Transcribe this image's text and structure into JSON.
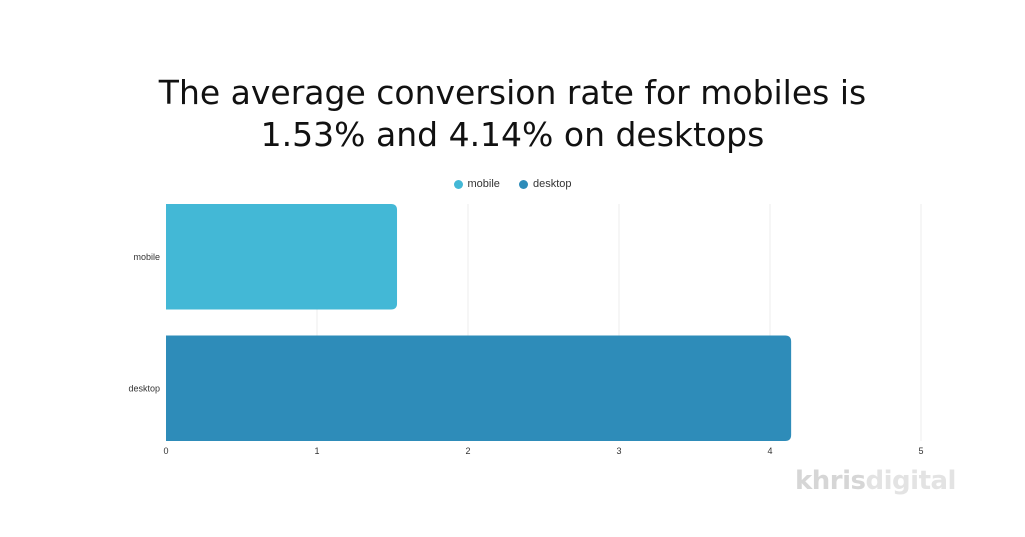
{
  "title_lines": [
    "The average conversion rate for mobiles is",
    "1.53% and 4.14% on desktops"
  ],
  "legend": [
    {
      "label": "mobile",
      "color": "#43b8d6"
    },
    {
      "label": "desktop",
      "color": "#2e8cb9"
    }
  ],
  "chart_data": {
    "type": "bar",
    "orientation": "horizontal",
    "title": "The average conversion rate for mobiles is 1.53% and 4.14% on desktops",
    "categories": [
      "mobile",
      "desktop"
    ],
    "values": [
      1.53,
      4.14
    ],
    "colors": [
      "#43b8d6",
      "#2e8cb9"
    ],
    "xlim": [
      0,
      5
    ],
    "xticks": [
      "0",
      "1",
      "2",
      "3",
      "4",
      "5"
    ],
    "grid": true,
    "legend_position": "top"
  },
  "watermark": {
    "text_main": "khris",
    "text_accent": "digital"
  }
}
